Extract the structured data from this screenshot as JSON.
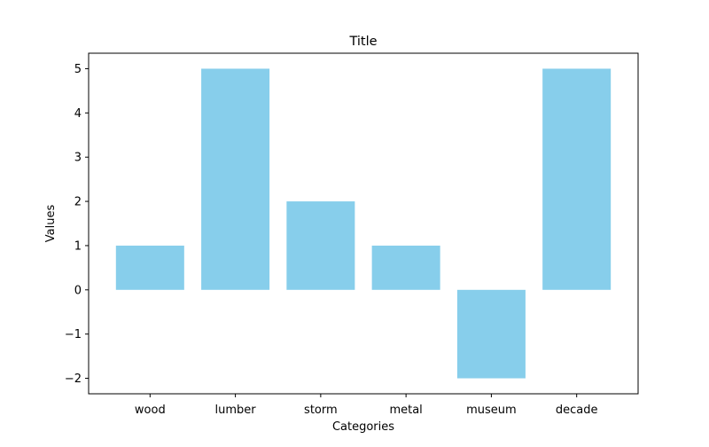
{
  "chart_data": {
    "type": "bar",
    "title": "Title",
    "xlabel": "Categories",
    "ylabel": "Values",
    "categories": [
      "wood",
      "lumber",
      "storm",
      "metal",
      "museum",
      "decade"
    ],
    "values": [
      1,
      5,
      2,
      1,
      -2,
      5
    ],
    "ylim": [
      -2.35,
      5.35
    ],
    "yticks": [
      -2,
      -1,
      0,
      1,
      2,
      3,
      4,
      5
    ],
    "ytick_labels": [
      "−2",
      "−1",
      "0",
      "1",
      "2",
      "3",
      "4",
      "5"
    ],
    "bar_color": "#87ceeb",
    "grid": false,
    "legend": false
  }
}
